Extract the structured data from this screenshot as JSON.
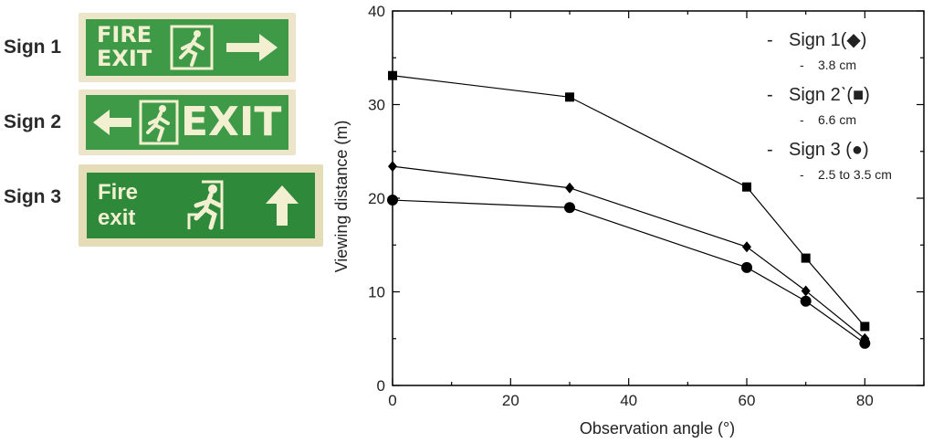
{
  "signs": [
    {
      "label": "Sign 1",
      "line1": "FIRE",
      "line2": "EXIT",
      "arrow": "right-arrow-icon"
    },
    {
      "label": "Sign 2",
      "text": "EXIT",
      "arrow": "left-arrow-icon"
    },
    {
      "label": "Sign 3",
      "line1": "Fire",
      "line2": "exit",
      "arrow": "up-arrow-icon"
    }
  ],
  "colors": {
    "sign_green": "#3e9a46",
    "sign_green_dark": "#2e8a3a",
    "sign_text": "#f3f0d2",
    "sign_border": "#ece5c9"
  },
  "chart_data": {
    "type": "line",
    "xlabel": "Observation angle (°)",
    "ylabel": "Viewing distance (m)",
    "xlim": [
      0,
      90
    ],
    "ylim": [
      0,
      40
    ],
    "xticks": [
      0,
      20,
      40,
      60,
      80
    ],
    "yticks": [
      0,
      10,
      20,
      30,
      40
    ],
    "grid": false,
    "legend_position": "top-right",
    "x": [
      0,
      30,
      60,
      70,
      80
    ],
    "series": [
      {
        "name": "Sign 1(◆)",
        "note": "3.8 cm",
        "marker": "diamond",
        "values": [
          23.4,
          21.1,
          14.8,
          10.1,
          5.0
        ]
      },
      {
        "name": "Sign 2ˋ(■)",
        "note": "6.6 cm",
        "marker": "square",
        "values": [
          33.1,
          30.8,
          21.2,
          13.6,
          6.3
        ]
      },
      {
        "name": "Sign 3 (●)",
        "note": "2.5 to 3.5 cm",
        "marker": "circle",
        "values": [
          19.8,
          19.0,
          12.6,
          9.0,
          4.5
        ]
      }
    ]
  }
}
